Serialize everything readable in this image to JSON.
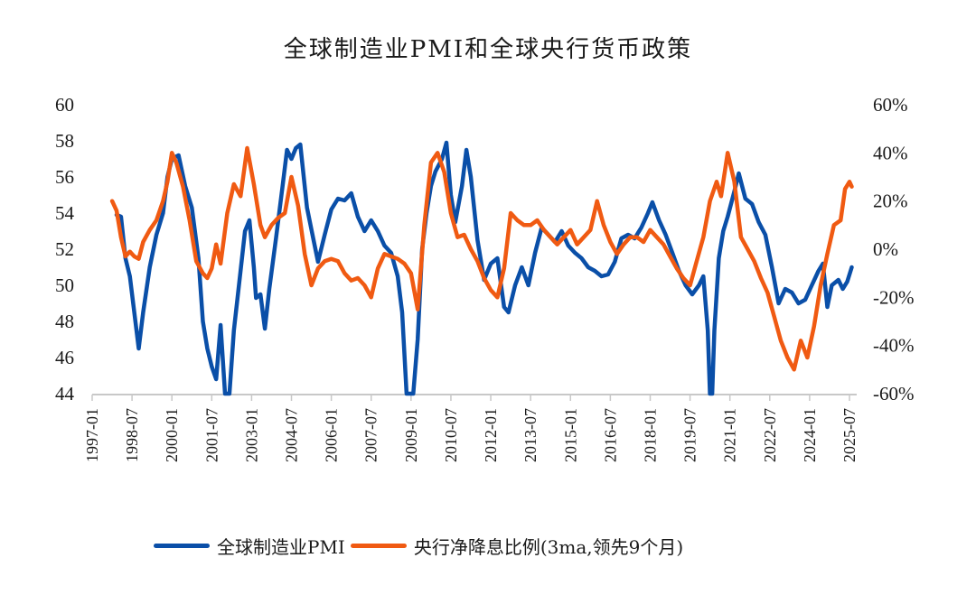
{
  "chart_data": {
    "type": "line",
    "title": "全球制造业PMI和全球央行货币政策",
    "xlabel": "",
    "ylabel_left": "",
    "ylabel_right": "",
    "x_tick_labels": [
      "1997-01",
      "1998-07",
      "2000-01",
      "2001-07",
      "2003-01",
      "2004-07",
      "2006-01",
      "2007-07",
      "2009-01",
      "2010-07",
      "2012-01",
      "2013-07",
      "2015-01",
      "2016-07",
      "2018-01",
      "2019-07",
      "2021-01",
      "2022-07",
      "2024-01",
      "2025-07"
    ],
    "x_range": [
      "1997-01",
      "2025-07"
    ],
    "y_left": {
      "ticks": [
        "60",
        "58",
        "56",
        "54",
        "52",
        "50",
        "48",
        "46",
        "44"
      ],
      "ylim": [
        44,
        60
      ]
    },
    "y_right": {
      "ticks": [
        "60%",
        "40%",
        "20%",
        "0%",
        "-20%",
        "-40%",
        "-60%"
      ],
      "ylim": [
        -60,
        60
      ]
    },
    "grid": false,
    "legend_position": "bottom",
    "colors": {
      "pmi": "#0a4fa8",
      "policy": "#f05a12",
      "axis": "#c8c8c8"
    },
    "series": [
      {
        "name": "全球制造业PMI",
        "axis": "left",
        "points": [
          [
            "1997-12",
            53.9
          ],
          [
            "1998-02",
            53.8
          ],
          [
            "1998-04",
            51.5
          ],
          [
            "1998-06",
            50.5
          ],
          [
            "1998-08",
            48.5
          ],
          [
            "1998-10",
            46.5
          ],
          [
            "1998-12",
            48.5
          ],
          [
            "1999-03",
            51.0
          ],
          [
            "1999-06",
            52.8
          ],
          [
            "1999-09",
            54.0
          ],
          [
            "1999-11",
            56.0
          ],
          [
            "2000-01",
            57.0
          ],
          [
            "2000-04",
            57.2
          ],
          [
            "2000-07",
            55.5
          ],
          [
            "2000-10",
            54.3
          ],
          [
            "2001-01",
            51.5
          ],
          [
            "2001-03",
            48.0
          ],
          [
            "2001-05",
            46.5
          ],
          [
            "2001-07",
            45.5
          ],
          [
            "2001-09",
            44.8
          ],
          [
            "2001-11",
            47.8
          ],
          [
            "2002-01",
            44.0
          ],
          [
            "2002-03",
            44.0
          ],
          [
            "2002-05",
            47.5
          ],
          [
            "2002-08",
            50.8
          ],
          [
            "2002-10",
            53.0
          ],
          [
            "2002-12",
            53.6
          ],
          [
            "2003-02",
            51.0
          ],
          [
            "2003-03",
            49.3
          ],
          [
            "2003-05",
            49.5
          ],
          [
            "2003-07",
            47.6
          ],
          [
            "2003-09",
            49.8
          ],
          [
            "2003-12",
            52.6
          ],
          [
            "2004-03",
            55.5
          ],
          [
            "2004-05",
            57.5
          ],
          [
            "2004-07",
            57.0
          ],
          [
            "2004-09",
            57.6
          ],
          [
            "2004-11",
            57.8
          ],
          [
            "2005-02",
            54.3
          ],
          [
            "2005-05",
            52.5
          ],
          [
            "2005-07",
            51.3
          ],
          [
            "2005-10",
            52.8
          ],
          [
            "2006-01",
            54.2
          ],
          [
            "2006-04",
            54.8
          ],
          [
            "2006-07",
            54.7
          ],
          [
            "2006-10",
            55.1
          ],
          [
            "2007-01",
            53.8
          ],
          [
            "2007-04",
            53.0
          ],
          [
            "2007-07",
            53.6
          ],
          [
            "2007-10",
            53.0
          ],
          [
            "2008-01",
            52.2
          ],
          [
            "2008-04",
            51.8
          ],
          [
            "2008-07",
            50.5
          ],
          [
            "2008-09",
            48.5
          ],
          [
            "2008-11",
            44.0
          ],
          [
            "2009-02",
            44.0
          ],
          [
            "2009-04",
            47.0
          ],
          [
            "2009-06",
            52.0
          ],
          [
            "2009-08",
            54.0
          ],
          [
            "2009-10",
            55.5
          ],
          [
            "2009-12",
            56.3
          ],
          [
            "2010-03",
            57.0
          ],
          [
            "2010-05",
            57.9
          ],
          [
            "2010-07",
            55.0
          ],
          [
            "2010-09",
            53.5
          ],
          [
            "2010-12",
            55.5
          ],
          [
            "2011-02",
            57.5
          ],
          [
            "2011-04",
            56.0
          ],
          [
            "2011-07",
            52.5
          ],
          [
            "2011-10",
            50.3
          ],
          [
            "2012-01",
            51.2
          ],
          [
            "2012-04",
            51.5
          ],
          [
            "2012-07",
            48.8
          ],
          [
            "2012-09",
            48.5
          ],
          [
            "2012-12",
            50.0
          ],
          [
            "2013-03",
            51.0
          ],
          [
            "2013-06",
            50.0
          ],
          [
            "2013-09",
            51.8
          ],
          [
            "2013-12",
            53.2
          ],
          [
            "2014-03",
            52.8
          ],
          [
            "2014-06",
            52.4
          ],
          [
            "2014-09",
            53.0
          ],
          [
            "2014-12",
            52.2
          ],
          [
            "2015-03",
            51.8
          ],
          [
            "2015-06",
            51.5
          ],
          [
            "2015-09",
            51.0
          ],
          [
            "2015-12",
            50.8
          ],
          [
            "2016-03",
            50.5
          ],
          [
            "2016-06",
            50.6
          ],
          [
            "2016-09",
            51.3
          ],
          [
            "2016-12",
            52.6
          ],
          [
            "2017-03",
            52.8
          ],
          [
            "2017-06",
            52.6
          ],
          [
            "2017-09",
            53.2
          ],
          [
            "2017-12",
            54.0
          ],
          [
            "2018-02",
            54.6
          ],
          [
            "2018-05",
            53.6
          ],
          [
            "2018-08",
            52.8
          ],
          [
            "2018-11",
            51.8
          ],
          [
            "2019-02",
            50.8
          ],
          [
            "2019-05",
            50.0
          ],
          [
            "2019-08",
            49.5
          ],
          [
            "2019-11",
            50.0
          ],
          [
            "2020-01",
            50.5
          ],
          [
            "2020-03",
            47.5
          ],
          [
            "2020-04",
            44.0
          ],
          [
            "2020-05",
            44.0
          ],
          [
            "2020-06",
            47.5
          ],
          [
            "2020-08",
            51.5
          ],
          [
            "2020-10",
            53.0
          ],
          [
            "2020-12",
            53.8
          ],
          [
            "2021-03",
            55.2
          ],
          [
            "2021-05",
            56.2
          ],
          [
            "2021-08",
            54.8
          ],
          [
            "2021-11",
            54.5
          ],
          [
            "2022-02",
            53.5
          ],
          [
            "2022-05",
            52.8
          ],
          [
            "2022-08",
            51.0
          ],
          [
            "2022-11",
            49.0
          ],
          [
            "2023-02",
            49.8
          ],
          [
            "2023-05",
            49.6
          ],
          [
            "2023-08",
            49.0
          ],
          [
            "2023-11",
            49.2
          ],
          [
            "2024-02",
            50.0
          ],
          [
            "2024-05",
            50.8
          ],
          [
            "2024-07",
            51.2
          ],
          [
            "2024-09",
            48.8
          ],
          [
            "2024-11",
            50.0
          ],
          [
            "2025-02",
            50.3
          ],
          [
            "2025-04",
            49.8
          ],
          [
            "2025-06",
            50.2
          ],
          [
            "2025-08",
            51.0
          ]
        ]
      },
      {
        "name": "央行净降息比例(3ma,领先9个月)",
        "axis": "right",
        "points": [
          [
            "1997-10",
            20
          ],
          [
            "1997-12",
            16
          ],
          [
            "1998-02",
            5
          ],
          [
            "1998-04",
            -3
          ],
          [
            "1998-06",
            -1
          ],
          [
            "1998-08",
            -3
          ],
          [
            "1998-10",
            -4
          ],
          [
            "1998-12",
            3
          ],
          [
            "1999-03",
            8
          ],
          [
            "1999-06",
            12
          ],
          [
            "1999-09",
            20
          ],
          [
            "1999-11",
            28
          ],
          [
            "2000-01",
            40
          ],
          [
            "2000-03",
            36
          ],
          [
            "2000-06",
            26
          ],
          [
            "2000-09",
            12
          ],
          [
            "2000-12",
            -5
          ],
          [
            "2001-03",
            -10
          ],
          [
            "2001-05",
            -12
          ],
          [
            "2001-07",
            -8
          ],
          [
            "2001-09",
            2
          ],
          [
            "2001-11",
            -6
          ],
          [
            "2002-02",
            15
          ],
          [
            "2002-05",
            27
          ],
          [
            "2002-08",
            22
          ],
          [
            "2002-11",
            42
          ],
          [
            "2003-02",
            27
          ],
          [
            "2003-05",
            10
          ],
          [
            "2003-07",
            5
          ],
          [
            "2003-10",
            10
          ],
          [
            "2004-01",
            13
          ],
          [
            "2004-04",
            15
          ],
          [
            "2004-07",
            30
          ],
          [
            "2004-10",
            18
          ],
          [
            "2005-01",
            -2
          ],
          [
            "2005-04",
            -15
          ],
          [
            "2005-07",
            -8
          ],
          [
            "2005-10",
            -5
          ],
          [
            "2006-01",
            -4
          ],
          [
            "2006-04",
            -5
          ],
          [
            "2006-07",
            -10
          ],
          [
            "2006-10",
            -13
          ],
          [
            "2007-01",
            -12
          ],
          [
            "2007-04",
            -15
          ],
          [
            "2007-07",
            -20
          ],
          [
            "2007-10",
            -8
          ],
          [
            "2008-01",
            -2
          ],
          [
            "2008-04",
            -3
          ],
          [
            "2008-07",
            -4
          ],
          [
            "2008-10",
            -6
          ],
          [
            "2009-01",
            -10
          ],
          [
            "2009-04",
            -25
          ],
          [
            "2009-07",
            10
          ],
          [
            "2009-10",
            36
          ],
          [
            "2010-01",
            40
          ],
          [
            "2010-04",
            32
          ],
          [
            "2010-07",
            15
          ],
          [
            "2010-10",
            5
          ],
          [
            "2011-01",
            6
          ],
          [
            "2011-04",
            0
          ],
          [
            "2011-07",
            -5
          ],
          [
            "2011-10",
            -12
          ],
          [
            "2012-01",
            -17
          ],
          [
            "2012-04",
            -20
          ],
          [
            "2012-07",
            -8
          ],
          [
            "2012-10",
            15
          ],
          [
            "2013-01",
            12
          ],
          [
            "2013-04",
            10
          ],
          [
            "2013-07",
            10
          ],
          [
            "2013-10",
            12
          ],
          [
            "2014-01",
            8
          ],
          [
            "2014-04",
            5
          ],
          [
            "2014-07",
            2
          ],
          [
            "2014-10",
            5
          ],
          [
            "2015-01",
            8
          ],
          [
            "2015-04",
            2
          ],
          [
            "2015-07",
            5
          ],
          [
            "2015-10",
            8
          ],
          [
            "2016-01",
            20
          ],
          [
            "2016-04",
            10
          ],
          [
            "2016-07",
            3
          ],
          [
            "2016-10",
            -2
          ],
          [
            "2017-01",
            2
          ],
          [
            "2017-04",
            5
          ],
          [
            "2017-07",
            5
          ],
          [
            "2017-10",
            3
          ],
          [
            "2018-01",
            8
          ],
          [
            "2018-04",
            5
          ],
          [
            "2018-07",
            2
          ],
          [
            "2018-10",
            -3
          ],
          [
            "2019-01",
            -8
          ],
          [
            "2019-04",
            -12
          ],
          [
            "2019-07",
            -15
          ],
          [
            "2019-10",
            -5
          ],
          [
            "2020-01",
            5
          ],
          [
            "2020-04",
            20
          ],
          [
            "2020-07",
            28
          ],
          [
            "2020-09",
            22
          ],
          [
            "2020-12",
            40
          ],
          [
            "2021-03",
            28
          ],
          [
            "2021-06",
            5
          ],
          [
            "2021-09",
            0
          ],
          [
            "2021-12",
            -5
          ],
          [
            "2022-03",
            -12
          ],
          [
            "2022-06",
            -18
          ],
          [
            "2022-09",
            -28
          ],
          [
            "2022-12",
            -38
          ],
          [
            "2023-03",
            -45
          ],
          [
            "2023-06",
            -50
          ],
          [
            "2023-09",
            -38
          ],
          [
            "2023-12",
            -45
          ],
          [
            "2024-03",
            -32
          ],
          [
            "2024-06",
            -15
          ],
          [
            "2024-09",
            -2
          ],
          [
            "2024-12",
            10
          ],
          [
            "2025-03",
            12
          ],
          [
            "2025-05",
            25
          ],
          [
            "2025-07",
            28
          ],
          [
            "2025-08",
            26
          ]
        ]
      }
    ]
  },
  "legend": {
    "pmi_label": "全球制造业PMI",
    "policy_label": "央行净降息比例(3ma,领先9个月)"
  }
}
